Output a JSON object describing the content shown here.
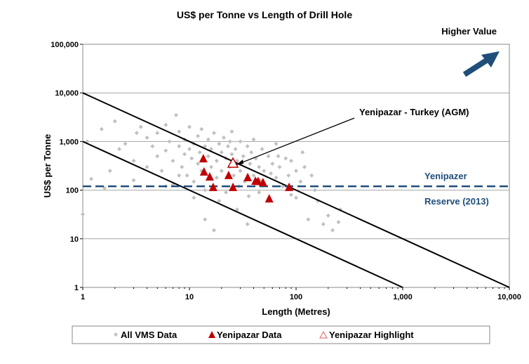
{
  "chart_data": {
    "type": "scatter",
    "title": "US$ per Tonne vs Length of Drill Hole",
    "xlabel": "Length (Metres)",
    "ylabel": "US$ per Tonne",
    "xscale": "log",
    "yscale": "log",
    "xlim": [
      1,
      10000
    ],
    "ylim": [
      1,
      100000
    ],
    "x_ticks": [
      {
        "v": 1,
        "label": "1"
      },
      {
        "v": 10,
        "label": "10"
      },
      {
        "v": 100,
        "label": "100"
      },
      {
        "v": 1000,
        "label": "1,000"
      },
      {
        "v": 10000,
        "label": "10,000"
      }
    ],
    "y_ticks": [
      {
        "v": 1,
        "label": "1"
      },
      {
        "v": 10,
        "label": "10"
      },
      {
        "v": 100,
        "label": "100"
      },
      {
        "v": 1000,
        "label": "1,000"
      },
      {
        "v": 10000,
        "label": "10,000"
      },
      {
        "v": 100000,
        "label": "100,000"
      }
    ],
    "grid": "horizontal",
    "legend_position": "bottom",
    "series": [
      {
        "name": "All VMS Data",
        "marker": "diamond",
        "color": "#c0c0c0",
        "points": [
          [
            1,
            32
          ],
          [
            1.1,
            1000
          ],
          [
            1.2,
            170
          ],
          [
            1.5,
            1800
          ],
          [
            1.6,
            110
          ],
          [
            1.8,
            250
          ],
          [
            2,
            2600
          ],
          [
            2.2,
            700
          ],
          [
            2.5,
            900
          ],
          [
            3,
            400
          ],
          [
            3.2,
            1500
          ],
          [
            3.5,
            2000
          ],
          [
            4,
            300
          ],
          [
            4,
            1200
          ],
          [
            4.5,
            800
          ],
          [
            5,
            500
          ],
          [
            5,
            1500
          ],
          [
            5.5,
            250
          ],
          [
            6,
            650
          ],
          [
            6,
            2200
          ],
          [
            6.5,
            1000
          ],
          [
            7,
            400
          ],
          [
            7,
            130
          ],
          [
            7.5,
            3500
          ],
          [
            8,
            800
          ],
          [
            8,
            1600
          ],
          [
            8.5,
            300
          ],
          [
            9,
            550
          ],
          [
            9,
            1100
          ],
          [
            9.5,
            200
          ],
          [
            10,
            700
          ],
          [
            10,
            2000
          ],
          [
            10.5,
            450
          ],
          [
            11,
            900
          ],
          [
            11,
            150
          ],
          [
            12,
            1300
          ],
          [
            12,
            350
          ],
          [
            12.5,
            600
          ],
          [
            13,
            250
          ],
          [
            13,
            1800
          ],
          [
            14,
            800
          ],
          [
            14,
            100
          ],
          [
            15,
            500
          ],
          [
            15,
            1100
          ],
          [
            16,
            300
          ],
          [
            16,
            700
          ],
          [
            17,
            15
          ],
          [
            17,
            1500
          ],
          [
            18,
            400
          ],
          [
            18,
            180
          ],
          [
            19,
            900
          ],
          [
            20,
            600
          ],
          [
            20,
            250
          ],
          [
            21,
            1200
          ],
          [
            22,
            450
          ],
          [
            22,
            90
          ],
          [
            23,
            800
          ],
          [
            24,
            300
          ],
          [
            25,
            550
          ],
          [
            25,
            1600
          ],
          [
            26,
            200
          ],
          [
            27,
            700
          ],
          [
            28,
            400
          ],
          [
            28,
            40
          ],
          [
            30,
            1000
          ],
          [
            30,
            250
          ],
          [
            32,
            500
          ],
          [
            33,
            150
          ],
          [
            35,
            800
          ],
          [
            35,
            20
          ],
          [
            37,
            350
          ],
          [
            38,
            600
          ],
          [
            40,
            200
          ],
          [
            40,
            1100
          ],
          [
            42,
            450
          ],
          [
            45,
            300
          ],
          [
            45,
            90
          ],
          [
            48,
            700
          ],
          [
            50,
            250
          ],
          [
            50,
            130
          ],
          [
            55,
            500
          ],
          [
            55,
            60
          ],
          [
            60,
            350
          ],
          [
            65,
            180
          ],
          [
            65,
            900
          ],
          [
            70,
            300
          ],
          [
            75,
            120
          ],
          [
            80,
            450
          ],
          [
            85,
            200
          ],
          [
            90,
            80
          ],
          [
            100,
            250
          ],
          [
            100,
            70
          ],
          [
            110,
            150
          ],
          [
            120,
            300
          ],
          [
            130,
            25
          ],
          [
            140,
            200
          ],
          [
            150,
            100
          ],
          [
            160,
            60
          ],
          [
            180,
            20
          ],
          [
            200,
            30
          ],
          [
            220,
            15
          ],
          [
            250,
            22
          ],
          [
            260,
            40
          ],
          [
            3,
            160
          ],
          [
            6,
            120
          ],
          [
            8,
            200
          ],
          [
            11,
            70
          ],
          [
            14,
            25
          ],
          [
            19,
            60
          ],
          [
            24,
            1000
          ],
          [
            29,
            120
          ],
          [
            36,
            75
          ],
          [
            46,
            160
          ],
          [
            58,
            220
          ],
          [
            68,
            500
          ],
          [
            90,
            400
          ],
          [
            115,
            600
          ]
        ]
      },
      {
        "name": "Yenipazar Data",
        "marker": "triangle",
        "color": "#c00000",
        "points": [
          [
            13.5,
            440
          ],
          [
            13.7,
            235
          ],
          [
            15.5,
            186
          ],
          [
            16.7,
            113
          ],
          [
            23.3,
            199
          ],
          [
            25.6,
            113
          ],
          [
            35.2,
            180
          ],
          [
            41.6,
            152
          ],
          [
            44,
            150
          ],
          [
            49,
            142
          ],
          [
            56,
            66
          ],
          [
            86,
            113
          ]
        ]
      },
      {
        "name": "Yenipazar Highlight",
        "marker": "triangle-open",
        "color": "#c00000",
        "points": [
          [
            25.6,
            350
          ]
        ]
      }
    ],
    "reference_lines": [
      {
        "name": "upper-diagonal",
        "from": [
          1,
          10000
        ],
        "to": [
          10000,
          1
        ],
        "color": "#000000"
      },
      {
        "name": "lower-diagonal",
        "from": [
          1,
          1000
        ],
        "to": [
          1000,
          1
        ],
        "color": "#000000"
      },
      {
        "name": "reserve-line",
        "y": 120,
        "style": "dashed",
        "color": "#1f4e79"
      }
    ],
    "annotations": {
      "callout": "Yenipazar - Turkey (AGM)",
      "reserve_line1": "Yenipazer",
      "reserve_line2": "Reserve (2013)",
      "higher_value": "Higher Value"
    },
    "colors": {
      "reserve": "#1f4e79",
      "arrow": "#1f4e79",
      "grid": "#a6a6a6"
    }
  }
}
